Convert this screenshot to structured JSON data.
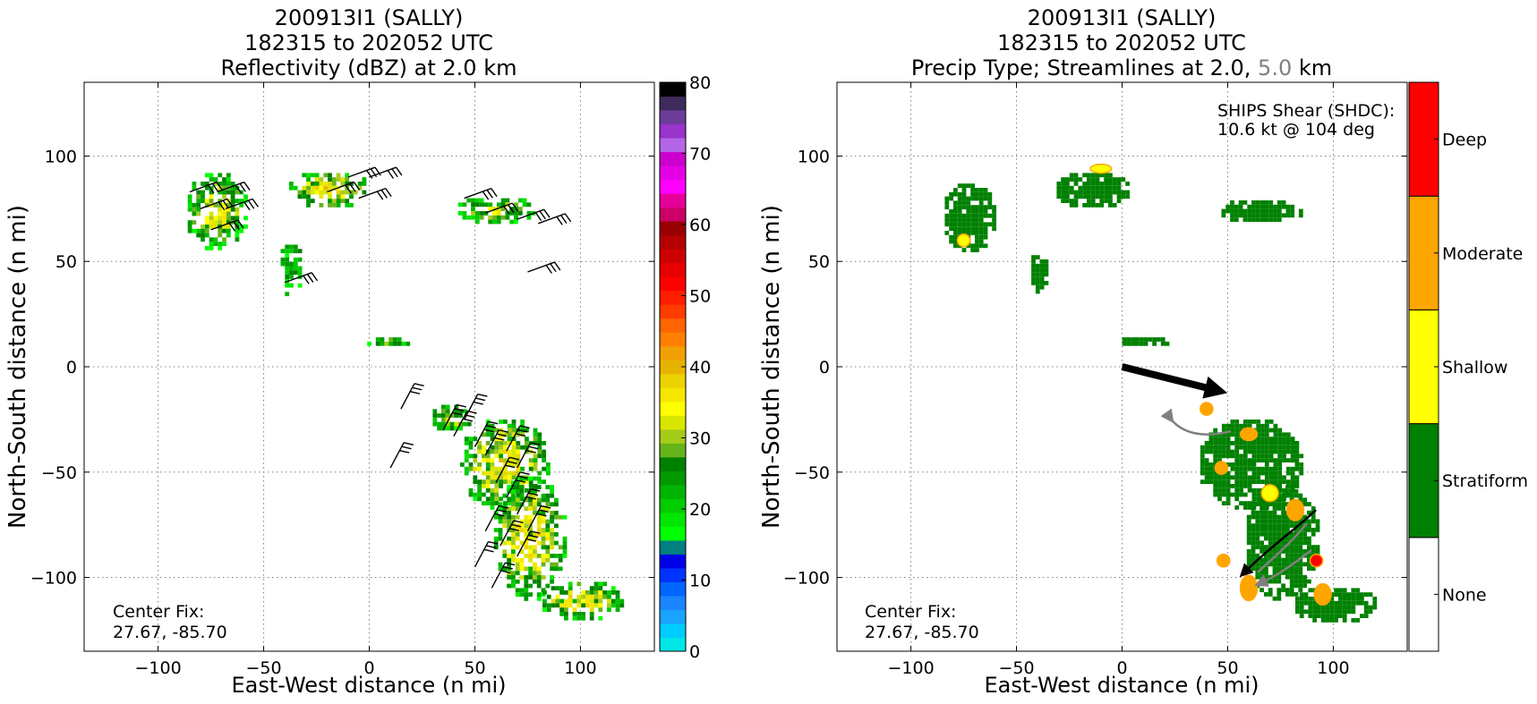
{
  "colors": {
    "stratiform": "#008000",
    "shallow": "#ffff00",
    "moderate": "#ffa500",
    "deep": "#ff0000",
    "none": "#ffffff",
    "grid": "#808080",
    "shear_arrow": "#000000",
    "streamline_upper": "#808080",
    "streamline_lower": "#000000"
  },
  "chart_data": [
    {
      "type": "heatmap",
      "title_lines": [
        "200913I1 (SALLY)",
        "182315 to 202052 UTC",
        "Reflectivity (dBZ) at 2.0 km"
      ],
      "xlabel": "East-West distance (n mi)",
      "ylabel": "North-South distance (n mi)",
      "xlim": [
        -135,
        135
      ],
      "ylim": [
        -135,
        135
      ],
      "xticks": [
        -100,
        -50,
        0,
        50,
        100
      ],
      "xtick_labels": [
        "−100",
        "−50",
        "0",
        "50",
        "100"
      ],
      "yticks": [
        -100,
        -50,
        0,
        50,
        100
      ],
      "ytick_labels": [
        "−100",
        "−50",
        "0",
        "50",
        "100"
      ],
      "grid": true,
      "annotation": [
        "Center Fix:",
        "27.67, -85.70"
      ],
      "colorbar": {
        "label_values": [
          0,
          10,
          20,
          30,
          40,
          50,
          60,
          70,
          80
        ],
        "label_texts": [
          "0",
          "10",
          "20",
          "30",
          "40",
          "50",
          "60",
          "70",
          "80"
        ],
        "range": [
          0,
          80
        ],
        "colors": [
          "#00e6e6",
          "#00ccff",
          "#1aa3ff",
          "#1a85ff",
          "#0066ff",
          "#0033ff",
          "#0000e6",
          "#008080",
          "#00ff00",
          "#00e600",
          "#00cc00",
          "#00b300",
          "#009900",
          "#008000",
          "#66b31a",
          "#a6cc1a",
          "#d9e600",
          "#ffff00",
          "#f5e600",
          "#ebd200",
          "#e6b400",
          "#f0a000",
          "#ff8000",
          "#ff6400",
          "#ff3c00",
          "#ff1e00",
          "#ff0000",
          "#e60000",
          "#cc0000",
          "#b30000",
          "#990000",
          "#cc0066",
          "#e6009a",
          "#ff00ff",
          "#e600e6",
          "#cc00cc",
          "#b366e6",
          "#9933cc",
          "#6b3d99",
          "#3d2b5c",
          "#000000"
        ]
      },
      "echo_regions": [
        {
          "x": -73,
          "y": 75,
          "rx": 15,
          "ry": 19,
          "peak_dbz": 38
        },
        {
          "x": -20,
          "y": 85,
          "rx": 20,
          "ry": 9,
          "peak_dbz": 40
        },
        {
          "x": -38,
          "y": 47,
          "rx": 6,
          "ry": 13,
          "peak_dbz": 30
        },
        {
          "x": 60,
          "y": 75,
          "rx": 20,
          "ry": 7,
          "peak_dbz": 36
        },
        {
          "x": 8,
          "y": 13,
          "rx": 11,
          "ry": 3,
          "peak_dbz": 34
        },
        {
          "x": 38,
          "y": -23,
          "rx": 10,
          "ry": 7,
          "peak_dbz": 36
        },
        {
          "x": 63,
          "y": -45,
          "rx": 22,
          "ry": 22,
          "peak_dbz": 40
        },
        {
          "x": 75,
          "y": -80,
          "rx": 18,
          "ry": 30,
          "peak_dbz": 40
        },
        {
          "x": 100,
          "y": -110,
          "rx": 20,
          "ry": 10,
          "peak_dbz": 40
        }
      ],
      "wind_barbs": [
        {
          "x": -85,
          "y": 83
        },
        {
          "x": -72,
          "y": 83
        },
        {
          "x": -80,
          "y": 75
        },
        {
          "x": -68,
          "y": 75
        },
        {
          "x": -75,
          "y": 65
        },
        {
          "x": -10,
          "y": 90
        },
        {
          "x": 0,
          "y": 90
        },
        {
          "x": -20,
          "y": 83
        },
        {
          "x": -5,
          "y": 80
        },
        {
          "x": -40,
          "y": 40
        },
        {
          "x": 45,
          "y": 80
        },
        {
          "x": 55,
          "y": 73
        },
        {
          "x": 70,
          "y": 70
        },
        {
          "x": 80,
          "y": 68
        },
        {
          "x": 75,
          "y": 45
        },
        {
          "x": 15,
          "y": -20
        },
        {
          "x": 35,
          "y": -30
        },
        {
          "x": 40,
          "y": -33
        },
        {
          "x": 50,
          "y": -38
        },
        {
          "x": 55,
          "y": -42
        },
        {
          "x": 65,
          "y": -40
        },
        {
          "x": 70,
          "y": -48
        },
        {
          "x": 60,
          "y": -55
        },
        {
          "x": 65,
          "y": -62
        },
        {
          "x": 70,
          "y": -70
        },
        {
          "x": 75,
          "y": -78
        },
        {
          "x": 55,
          "y": -78
        },
        {
          "x": 62,
          "y": -85
        },
        {
          "x": 70,
          "y": -90
        },
        {
          "x": 50,
          "y": -95
        },
        {
          "x": 58,
          "y": -105
        },
        {
          "x": 10,
          "y": -48
        },
        {
          "x": 45,
          "y": -25
        }
      ]
    },
    {
      "type": "heatmap",
      "title_lines": [
        "200913I1 (SALLY)",
        "182315 to 202052 UTC"
      ],
      "title_line3_parts": [
        "Precip Type; Streamlines at 2.0, ",
        "5.0",
        " km"
      ],
      "xlabel": "East-West distance (n mi)",
      "ylabel": "North-South distance (n mi)",
      "xlim": [
        -135,
        135
      ],
      "ylim": [
        -135,
        135
      ],
      "xticks": [
        -100,
        -50,
        0,
        50,
        100
      ],
      "xtick_labels": [
        "−100",
        "−50",
        "0",
        "50",
        "100"
      ],
      "yticks": [
        -100,
        -50,
        0,
        50,
        100
      ],
      "ytick_labels": [
        "−100",
        "−50",
        "0",
        "50",
        "100"
      ],
      "grid": true,
      "annotation": [
        "Center Fix:",
        "27.67, -85.70"
      ],
      "shear_text": [
        "SHIPS Shear (SHDC):",
        "10.6 kt @ 104 deg"
      ],
      "shear_vector": {
        "x0": 0,
        "y0": 0,
        "x1": 48,
        "y1": -12
      },
      "colorbar": {
        "categories": [
          "None",
          "Stratiform",
          "Shallow",
          "Moderate",
          "Deep"
        ],
        "colors": [
          "#ffffff",
          "#008000",
          "#ffff00",
          "#ffa500",
          "#ff0000"
        ]
      },
      "precip_regions": [
        {
          "x": -73,
          "y": 72,
          "rx": 13,
          "ry": 17,
          "type": "Stratiform"
        },
        {
          "x": -15,
          "y": 85,
          "rx": 18,
          "ry": 9,
          "type": "Stratiform"
        },
        {
          "x": -40,
          "y": 45,
          "rx": 5,
          "ry": 10,
          "type": "Stratiform"
        },
        {
          "x": 65,
          "y": 75,
          "rx": 20,
          "ry": 6,
          "type": "Stratiform"
        },
        {
          "x": 10,
          "y": 13,
          "rx": 12,
          "ry": 3,
          "type": "Stratiform"
        },
        {
          "x": 60,
          "y": -45,
          "rx": 25,
          "ry": 22,
          "type": "Stratiform"
        },
        {
          "x": 75,
          "y": -82,
          "rx": 18,
          "ry": 28,
          "type": "Stratiform"
        },
        {
          "x": 100,
          "y": -112,
          "rx": 20,
          "ry": 9,
          "type": "Stratiform"
        },
        {
          "x": 40,
          "y": -20,
          "rx": 3,
          "ry": 3,
          "type": "Moderate"
        },
        {
          "x": 60,
          "y": -32,
          "rx": 4,
          "ry": 3,
          "type": "Moderate"
        },
        {
          "x": 47,
          "y": -48,
          "rx": 3,
          "ry": 3,
          "type": "Moderate"
        },
        {
          "x": 82,
          "y": -68,
          "rx": 4,
          "ry": 5,
          "type": "Moderate"
        },
        {
          "x": 92,
          "y": -92,
          "rx": 3,
          "ry": 3,
          "type": "Deep"
        },
        {
          "x": 95,
          "y": -108,
          "rx": 4,
          "ry": 5,
          "type": "Moderate"
        },
        {
          "x": 60,
          "y": -105,
          "rx": 4,
          "ry": 6,
          "type": "Moderate"
        },
        {
          "x": 48,
          "y": -92,
          "rx": 3,
          "ry": 3,
          "type": "Moderate"
        },
        {
          "x": -10,
          "y": 94,
          "rx": 5,
          "ry": 2,
          "type": "Shallow"
        },
        {
          "x": -75,
          "y": 60,
          "rx": 3,
          "ry": 3,
          "type": "Shallow"
        },
        {
          "x": 70,
          "y": -60,
          "rx": 4,
          "ry": 4,
          "type": "Shallow"
        }
      ]
    }
  ]
}
